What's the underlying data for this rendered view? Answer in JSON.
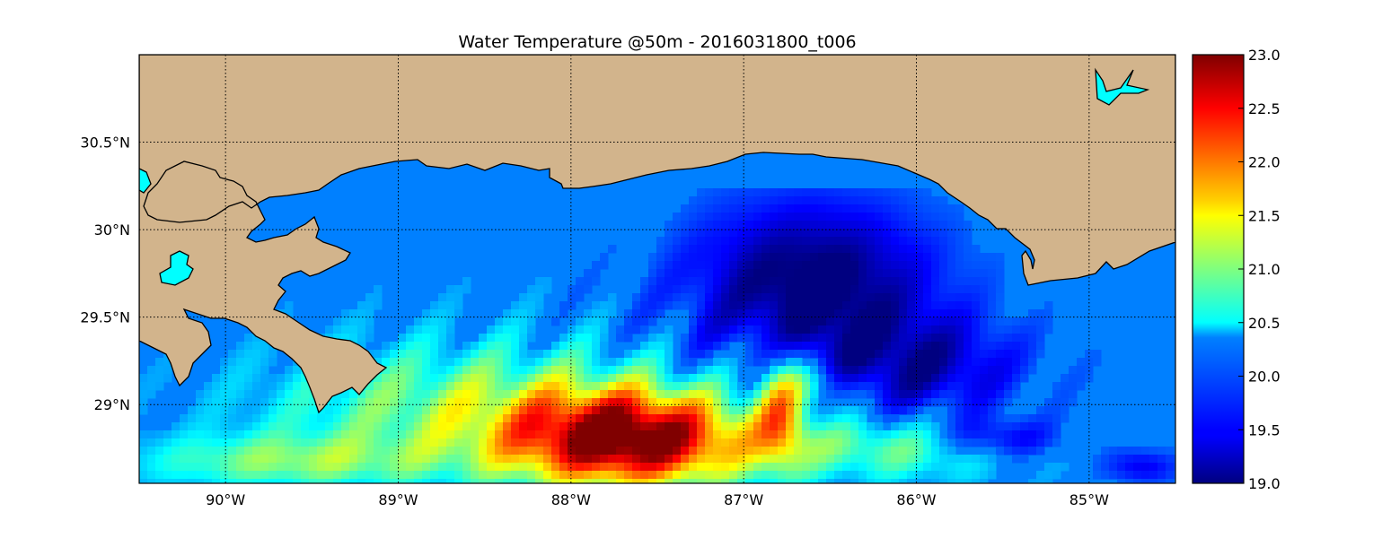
{
  "title": "Water Temperature @50m - 2016031800_t006",
  "colors": {
    "land": "#d2b48c",
    "lake": "#00ffff",
    "water_base": "#0080ff",
    "coastline": "#000000",
    "grid": "#000000"
  },
  "map": {
    "lon_range": [
      -90.5,
      -84.5
    ],
    "lat_range": [
      28.55,
      31.0
    ],
    "lon_ticks": [
      {
        "value": -90,
        "label": "90°W"
      },
      {
        "value": -89,
        "label": "89°W"
      },
      {
        "value": -88,
        "label": "88°W"
      },
      {
        "value": -87,
        "label": "87°W"
      },
      {
        "value": -86,
        "label": "86°W"
      },
      {
        "value": -85,
        "label": "85°W"
      }
    ],
    "lat_ticks": [
      {
        "value": 30.5,
        "label": "30.5°N"
      },
      {
        "value": 30.0,
        "label": "30°N"
      },
      {
        "value": 29.5,
        "label": "29.5°N"
      },
      {
        "value": 29.0,
        "label": "29°N"
      }
    ],
    "gridlines": "dotted"
  },
  "colorbar": {
    "colormap": "jet",
    "min": 19.0,
    "max": 23.0,
    "ticks": [
      "23.0",
      "22.5",
      "22.0",
      "21.5",
      "21.0",
      "20.5",
      "20.0",
      "19.5",
      "19.0"
    ]
  },
  "features": [
    {
      "name": "warm-core-loop-current",
      "temp_range": [
        22.5,
        23.0
      ]
    },
    {
      "name": "cold-eddy-offshore-florida-panhandle",
      "temp_range": [
        19.0,
        19.5
      ]
    },
    {
      "name": "cold-patch-southeast",
      "temp_range": [
        19.0,
        19.5
      ]
    }
  ]
}
